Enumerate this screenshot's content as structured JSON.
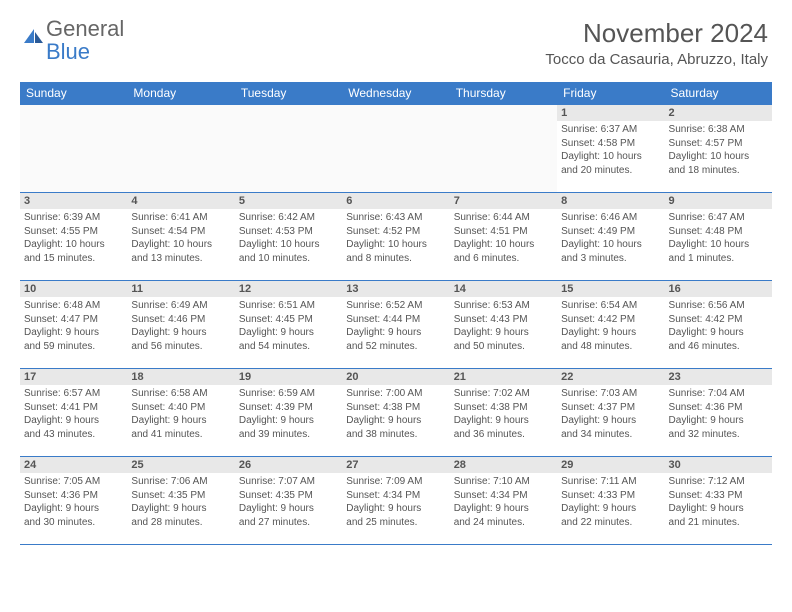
{
  "logo": {
    "word1": "General",
    "word2": "Blue"
  },
  "title": "November 2024",
  "location": "Tocco da Casauria, Abruzzo, Italy",
  "colors": {
    "header_bg": "#3a7bc8",
    "header_text": "#ffffff",
    "daynum_bg": "#e8e8e8",
    "text": "#555555",
    "row_border": "#3a7bc8",
    "page_bg": "#ffffff"
  },
  "day_headers": [
    "Sunday",
    "Monday",
    "Tuesday",
    "Wednesday",
    "Thursday",
    "Friday",
    "Saturday"
  ],
  "weeks": [
    [
      null,
      null,
      null,
      null,
      null,
      {
        "d": "1",
        "sr": "6:37 AM",
        "ss": "4:58 PM",
        "dh": "10",
        "dm": "20"
      },
      {
        "d": "2",
        "sr": "6:38 AM",
        "ss": "4:57 PM",
        "dh": "10",
        "dm": "18"
      }
    ],
    [
      {
        "d": "3",
        "sr": "6:39 AM",
        "ss": "4:55 PM",
        "dh": "10",
        "dm": "15"
      },
      {
        "d": "4",
        "sr": "6:41 AM",
        "ss": "4:54 PM",
        "dh": "10",
        "dm": "13"
      },
      {
        "d": "5",
        "sr": "6:42 AM",
        "ss": "4:53 PM",
        "dh": "10",
        "dm": "10"
      },
      {
        "d": "6",
        "sr": "6:43 AM",
        "ss": "4:52 PM",
        "dh": "10",
        "dm": "8"
      },
      {
        "d": "7",
        "sr": "6:44 AM",
        "ss": "4:51 PM",
        "dh": "10",
        "dm": "6"
      },
      {
        "d": "8",
        "sr": "6:46 AM",
        "ss": "4:49 PM",
        "dh": "10",
        "dm": "3"
      },
      {
        "d": "9",
        "sr": "6:47 AM",
        "ss": "4:48 PM",
        "dh": "10",
        "dm": "1"
      }
    ],
    [
      {
        "d": "10",
        "sr": "6:48 AM",
        "ss": "4:47 PM",
        "dh": "9",
        "dm": "59"
      },
      {
        "d": "11",
        "sr": "6:49 AM",
        "ss": "4:46 PM",
        "dh": "9",
        "dm": "56"
      },
      {
        "d": "12",
        "sr": "6:51 AM",
        "ss": "4:45 PM",
        "dh": "9",
        "dm": "54"
      },
      {
        "d": "13",
        "sr": "6:52 AM",
        "ss": "4:44 PM",
        "dh": "9",
        "dm": "52"
      },
      {
        "d": "14",
        "sr": "6:53 AM",
        "ss": "4:43 PM",
        "dh": "9",
        "dm": "50"
      },
      {
        "d": "15",
        "sr": "6:54 AM",
        "ss": "4:42 PM",
        "dh": "9",
        "dm": "48"
      },
      {
        "d": "16",
        "sr": "6:56 AM",
        "ss": "4:42 PM",
        "dh": "9",
        "dm": "46"
      }
    ],
    [
      {
        "d": "17",
        "sr": "6:57 AM",
        "ss": "4:41 PM",
        "dh": "9",
        "dm": "43"
      },
      {
        "d": "18",
        "sr": "6:58 AM",
        "ss": "4:40 PM",
        "dh": "9",
        "dm": "41"
      },
      {
        "d": "19",
        "sr": "6:59 AM",
        "ss": "4:39 PM",
        "dh": "9",
        "dm": "39"
      },
      {
        "d": "20",
        "sr": "7:00 AM",
        "ss": "4:38 PM",
        "dh": "9",
        "dm": "38"
      },
      {
        "d": "21",
        "sr": "7:02 AM",
        "ss": "4:38 PM",
        "dh": "9",
        "dm": "36"
      },
      {
        "d": "22",
        "sr": "7:03 AM",
        "ss": "4:37 PM",
        "dh": "9",
        "dm": "34"
      },
      {
        "d": "23",
        "sr": "7:04 AM",
        "ss": "4:36 PM",
        "dh": "9",
        "dm": "32"
      }
    ],
    [
      {
        "d": "24",
        "sr": "7:05 AM",
        "ss": "4:36 PM",
        "dh": "9",
        "dm": "30"
      },
      {
        "d": "25",
        "sr": "7:06 AM",
        "ss": "4:35 PM",
        "dh": "9",
        "dm": "28"
      },
      {
        "d": "26",
        "sr": "7:07 AM",
        "ss": "4:35 PM",
        "dh": "9",
        "dm": "27"
      },
      {
        "d": "27",
        "sr": "7:09 AM",
        "ss": "4:34 PM",
        "dh": "9",
        "dm": "25"
      },
      {
        "d": "28",
        "sr": "7:10 AM",
        "ss": "4:34 PM",
        "dh": "9",
        "dm": "24"
      },
      {
        "d": "29",
        "sr": "7:11 AM",
        "ss": "4:33 PM",
        "dh": "9",
        "dm": "22"
      },
      {
        "d": "30",
        "sr": "7:12 AM",
        "ss": "4:33 PM",
        "dh": "9",
        "dm": "21"
      }
    ]
  ],
  "labels": {
    "sunrise": "Sunrise:",
    "sunset": "Sunset:",
    "daylight": "Daylight:",
    "hours": "hours",
    "and": "and",
    "minutes": "minutes."
  }
}
